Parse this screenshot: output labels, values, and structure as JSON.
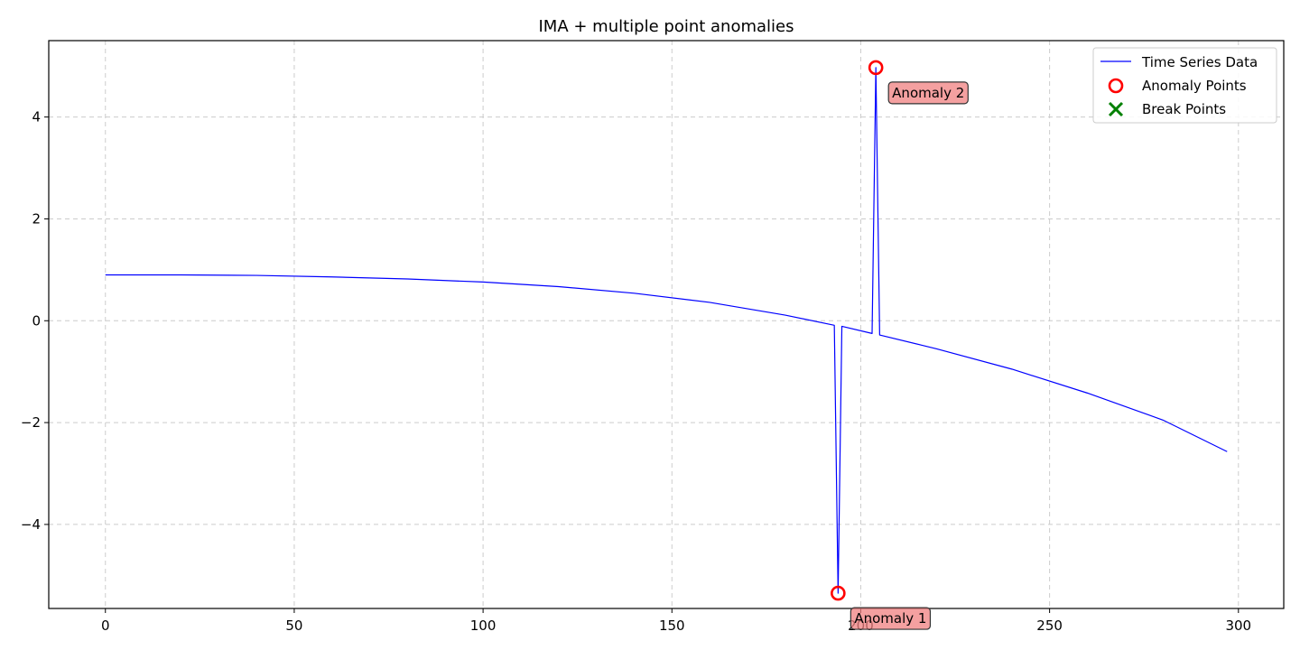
{
  "chart_data": {
    "type": "line",
    "title": "IMA + multiple point anomalies",
    "xlabel": "",
    "ylabel": "",
    "xlim": [
      -15,
      312
    ],
    "ylim": [
      -5.65,
      5.5
    ],
    "xticks": [
      0,
      50,
      100,
      150,
      200,
      250,
      300
    ],
    "yticks": [
      -4,
      -2,
      0,
      2,
      4
    ],
    "grid": true,
    "legend_position": "top-right",
    "colors": {
      "line": "#0000ff",
      "anomaly": "#ff0000",
      "break": "#008000",
      "annotation_fill": "#f08080",
      "grid": "#cccccc"
    },
    "series": [
      {
        "name": "Time Series Data",
        "style": "line",
        "x": [
          0,
          20,
          40,
          60,
          80,
          100,
          120,
          140,
          160,
          180,
          193,
          194,
          195,
          203,
          204,
          205,
          220,
          240,
          260,
          280,
          297
        ],
        "y": [
          0.9,
          0.9,
          0.89,
          0.86,
          0.82,
          0.76,
          0.67,
          0.54,
          0.36,
          0.11,
          -0.09,
          -5.35,
          -0.11,
          -0.25,
          4.97,
          -0.28,
          -0.55,
          -0.95,
          -1.42,
          -1.95,
          -2.57
        ]
      },
      {
        "name": "Anomaly Points",
        "style": "marker-circle",
        "x": [
          194,
          204
        ],
        "y": [
          -5.35,
          4.97
        ]
      },
      {
        "name": "Break Points",
        "style": "marker-x",
        "x": [],
        "y": []
      }
    ],
    "annotations": [
      {
        "text": "Anomaly 1",
        "x": 194,
        "y": -5.35
      },
      {
        "text": "Anomaly 2",
        "x": 204,
        "y": 4.97
      }
    ]
  }
}
